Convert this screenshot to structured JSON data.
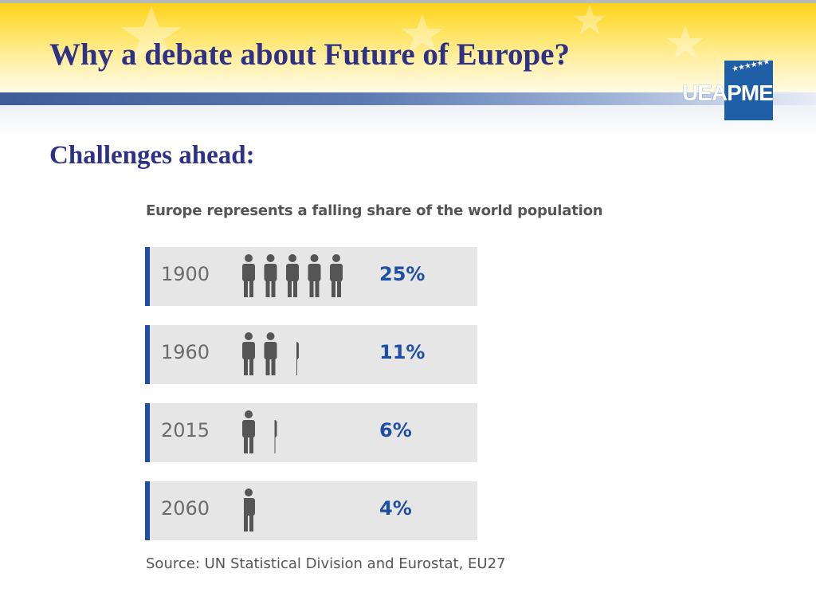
{
  "slide": {
    "title": "Why a debate about Future of Europe?",
    "subtitle": "Challenges ahead:"
  },
  "logo": {
    "text": "UEAPME",
    "stars": "★★★★★★"
  },
  "colors": {
    "title": "#2e3185",
    "value": "#1f4fa3",
    "accent_bar": "#1f4fa3",
    "row_bg": "#e6e6e6",
    "icon": "#555555",
    "banner_yellow": "#ffd21a",
    "band_blue": "#3e5d97",
    "logo_blue": "#1f5fa8"
  },
  "chart_data": {
    "type": "table",
    "title": "Europe represents a falling share of the world population",
    "icon": "person-icon",
    "unit": "%",
    "rows": [
      {
        "year": "1900",
        "share": 25,
        "label": "25%"
      },
      {
        "year": "1960",
        "share": 11,
        "label": "11%"
      },
      {
        "year": "2015",
        "share": 6,
        "label": "6%"
      },
      {
        "year": "2060",
        "share": 4,
        "label": "4%"
      }
    ],
    "source": "Source: UN Statistical Division and Eurostat, EU27"
  }
}
